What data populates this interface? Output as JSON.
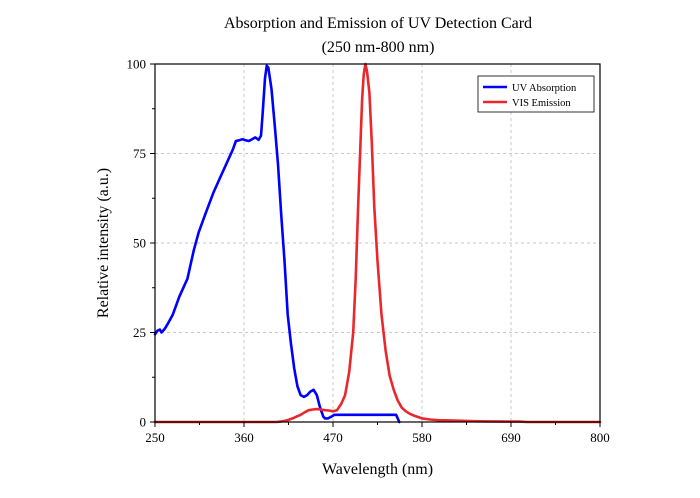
{
  "chart_data": {
    "type": "line",
    "title": "Absorption and Emission of UV Detection Card",
    "subtitle": "(250 nm-800 nm)",
    "xlabel": "Wavelength (nm)",
    "ylabel": "Relative intensity (a.u.)",
    "xlim": [
      250,
      800
    ],
    "ylim": [
      0,
      100
    ],
    "xticks": [
      250,
      360,
      470,
      580,
      690,
      800
    ],
    "yticks": [
      0,
      25,
      50,
      75,
      100
    ],
    "xtick_labels": [
      "250",
      "360",
      "470",
      "580",
      "690",
      "800"
    ],
    "ytick_labels": [
      "0",
      "25",
      "50",
      "75",
      "100"
    ],
    "grid": true,
    "legend_position": "top-right",
    "series": [
      {
        "name": "UV Absorption",
        "color": "#0000ff",
        "x": [
          250,
          253,
          256,
          258,
          262,
          266,
          272,
          280,
          290,
          298,
          304,
          312,
          322,
          332,
          340,
          346,
          350,
          354,
          358,
          362,
          366,
          370,
          374,
          378,
          381,
          383,
          386,
          388,
          390,
          394,
          398,
          402,
          406,
          410,
          414,
          418,
          422,
          426,
          430,
          434,
          438,
          442,
          446,
          450,
          454,
          458,
          460,
          464,
          468,
          472,
          480,
          490,
          500,
          520,
          540,
          548,
          550,
          552
        ],
        "y": [
          24.5,
          25.5,
          25.8,
          25,
          26,
          27.5,
          30,
          35,
          40,
          48,
          53,
          58,
          64,
          69,
          73,
          76,
          78.5,
          78.7,
          79,
          78.7,
          78.5,
          79,
          79.5,
          78.8,
          80,
          86,
          96,
          99.5,
          99,
          93,
          83,
          72,
          58,
          45,
          30,
          22,
          15,
          10,
          7.5,
          7,
          7.5,
          8.5,
          9,
          7.5,
          4,
          1.5,
          1,
          1,
          1.5,
          2,
          2,
          2,
          2,
          2,
          2,
          2,
          1,
          0
        ]
      },
      {
        "name": "VIS Emission",
        "color": "#e8282c",
        "x": [
          250,
          300,
          350,
          400,
          405,
          410,
          415,
          420,
          425,
          430,
          435,
          440,
          445,
          450,
          455,
          460,
          465,
          470,
          475,
          480,
          485,
          490,
          495,
          498,
          501,
          504,
          506,
          508,
          510,
          512,
          515,
          518,
          521,
          525,
          530,
          535,
          540,
          545,
          550,
          555,
          560,
          565,
          570,
          575,
          580,
          590,
          600,
          620,
          650,
          700,
          710,
          800
        ],
        "y": [
          0,
          0,
          0,
          0,
          0.1,
          0.3,
          0.6,
          1,
          1.5,
          2,
          2.7,
          3.3,
          3.5,
          3.6,
          3.5,
          3.3,
          3.2,
          3,
          3.3,
          5,
          7.5,
          14,
          25,
          40,
          60,
          78,
          90,
          97,
          100,
          98,
          92,
          78,
          60,
          45,
          30,
          20,
          13,
          9,
          6,
          4,
          3,
          2.3,
          1.8,
          1.4,
          1,
          0.7,
          0.5,
          0.4,
          0.2,
          0.1,
          0,
          0
        ]
      }
    ]
  }
}
